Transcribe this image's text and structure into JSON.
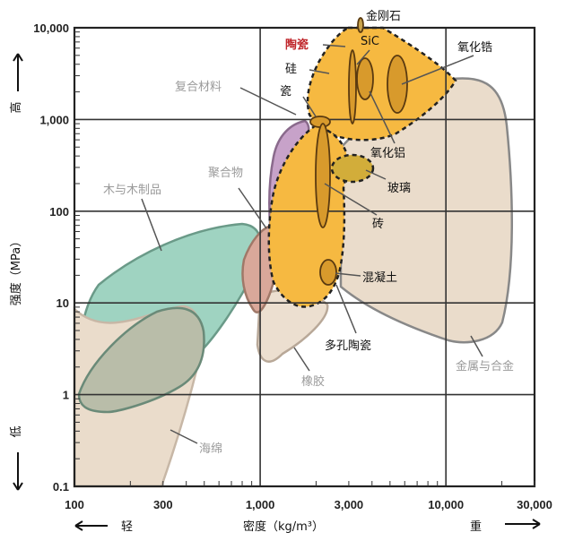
{
  "chart_data": {
    "type": "area",
    "title": "",
    "xlabel": "密度（kg/m³）",
    "ylabel": "强度（MPa）",
    "x_scale": "log",
    "y_scale": "log",
    "xlim": [
      100,
      30000
    ],
    "ylim": [
      0.1,
      10000
    ],
    "grid": true,
    "x_ticks": [
      {
        "value": 100,
        "label": "100"
      },
      {
        "value": 300,
        "label": "300"
      },
      {
        "value": 1000,
        "label": "1,000"
      },
      {
        "value": 3000,
        "label": "3,000"
      },
      {
        "value": 10000,
        "label": "10,000"
      },
      {
        "value": 30000,
        "label": "30,000"
      }
    ],
    "y_ticks": [
      {
        "value": 10000,
        "label": "10,000"
      },
      {
        "value": 1000,
        "label": "1,000"
      },
      {
        "value": 100,
        "label": "100"
      },
      {
        "value": 10,
        "label": "10"
      },
      {
        "value": 1,
        "label": "1"
      },
      {
        "value": 0.1,
        "label": "0.1"
      }
    ],
    "y_high_label": "高",
    "y_low_label": "低",
    "x_low_label": "轻",
    "x_high_label": "重",
    "regions": [
      {
        "name": "木与木制品",
        "color": "#9fd3c1",
        "density_range": [
          100,
          900
        ],
        "strength_range": [
          1,
          80
        ]
      },
      {
        "name": "海绵",
        "color": "#eadccb",
        "density_range": [
          100,
          450
        ],
        "strength_range": [
          0.1,
          10
        ]
      },
      {
        "name": "聚合物",
        "color": "#d9a89a",
        "density_range": [
          850,
          2200
        ],
        "strength_range": [
          5,
          100
        ]
      },
      {
        "name": "橡胶",
        "color": "#eadccb",
        "density_range": [
          950,
          2500
        ],
        "strength_range": [
          1,
          20
        ]
      },
      {
        "name": "复合材料",
        "color": "#c7a2c9",
        "density_range": [
          1000,
          2200
        ],
        "strength_range": [
          70,
          1500
        ]
      },
      {
        "name": "金属与合金",
        "color": "#dcd6ea",
        "density_range": [
          1700,
          22000
        ],
        "strength_range": [
          4,
          3000
        ]
      },
      {
        "name": "陶瓷",
        "color": "#f6b941",
        "density_range": [
          1000,
          10000
        ],
        "strength_range": [
          8,
          10000
        ]
      }
    ],
    "materials": [
      {
        "name": "金刚石",
        "density": 3500,
        "strength": [
          8000,
          10000
        ]
      },
      {
        "name": "SiC",
        "density": 3100,
        "strength": [
          1000,
          5000
        ]
      },
      {
        "name": "氧化铝",
        "density": 3900,
        "strength": [
          1500,
          4500
        ]
      },
      {
        "name": "氧化锆",
        "density": 5800,
        "strength": [
          1000,
          5000
        ]
      },
      {
        "name": "硅",
        "density": 2300,
        "strength": [
          3000,
          3000
        ]
      },
      {
        "name": "瓷",
        "density": 2400,
        "strength": [
          900,
          1100
        ]
      },
      {
        "name": "玻璃",
        "density": 2600,
        "strength": [
          200,
          400
        ]
      },
      {
        "name": "砖",
        "density": 2000,
        "strength": [
          50,
          800
        ]
      },
      {
        "name": "混凝土",
        "density": 2300,
        "strength": [
          15,
          40
        ]
      },
      {
        "name": "多孔陶瓷",
        "density": 2000,
        "strength": [
          8,
          30
        ]
      }
    ],
    "series_colors": {
      "ceramic_fill": "#f6b941",
      "ceramic_item": "#d89a2c",
      "glass": "#d2ad3a",
      "highlight": "#c0282d"
    }
  }
}
